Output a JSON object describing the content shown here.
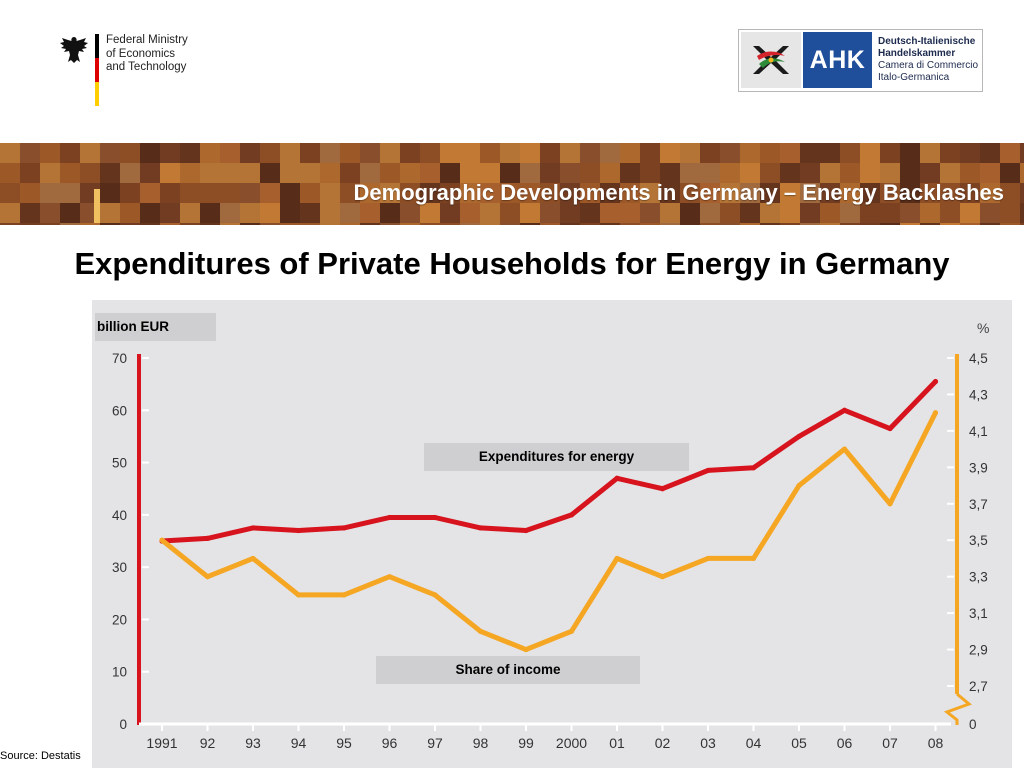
{
  "header": {
    "ministry_lines": [
      "Federal Ministry",
      "of Economics",
      "and Technology"
    ],
    "ahk": {
      "abbr": "AHK",
      "lines": [
        "Deutsch-Italienische",
        "Handelskammer",
        "Camera di Commercio",
        "Italo-Germanica"
      ]
    },
    "banner_title": "Demographic Developments in Germany – Energy Backlashes"
  },
  "slide_title": "Expenditures of Private Households for Energy in Germany",
  "source": "Source: Destatis",
  "colors": {
    "expenditures": "#d7141e",
    "share": "#f5a623",
    "panel": "#e4e4e6",
    "label_box": "#cfcfd1",
    "flag_black": "#000000",
    "flag_red": "#dd0000",
    "flag_gold": "#ffce00",
    "ahk_blue": "#1f4e9a"
  },
  "icons": [
    "federal-eagle-icon",
    "ahk-logo-icon"
  ],
  "chart_data": {
    "type": "line",
    "categories": [
      "1991",
      "92",
      "93",
      "94",
      "95",
      "96",
      "97",
      "98",
      "99",
      "2000",
      "01",
      "02",
      "03",
      "04",
      "05",
      "06",
      "07",
      "08"
    ],
    "left_axis": {
      "label": "billion EUR",
      "range": [
        0,
        70
      ],
      "ticks": [
        0,
        10,
        20,
        30,
        40,
        50,
        60,
        70
      ],
      "tick_labels": [
        "0",
        "10",
        "20",
        "30",
        "40",
        "50",
        "60",
        "70"
      ]
    },
    "right_axis": {
      "label": "%",
      "range": [
        2.5,
        4.5
      ],
      "ticks": [
        2.7,
        2.9,
        3.1,
        3.3,
        3.5,
        3.7,
        3.9,
        4.1,
        4.3,
        4.5
      ],
      "tick_labels": [
        "2,7",
        "2,9",
        "3,1",
        "3,3",
        "3,5",
        "3,7",
        "3,9",
        "4,1",
        "4,3",
        "4,5"
      ],
      "zero_label": "0",
      "axis_break": true
    },
    "series": [
      {
        "name": "Expenditures for energy",
        "axis": "left",
        "values": [
          35,
          35.5,
          37.5,
          37,
          37.5,
          39.5,
          39.5,
          37.5,
          37,
          40,
          47,
          45,
          48.5,
          49,
          55,
          60,
          56.5,
          65.5
        ]
      },
      {
        "name": "Share of income",
        "axis": "right",
        "values": [
          3.5,
          3.3,
          3.4,
          3.2,
          3.2,
          3.3,
          3.2,
          3.0,
          2.9,
          3.0,
          3.4,
          3.3,
          3.4,
          3.4,
          3.8,
          4.0,
          3.7,
          4.2
        ]
      }
    ],
    "grid": false,
    "legend": "inline labels"
  }
}
